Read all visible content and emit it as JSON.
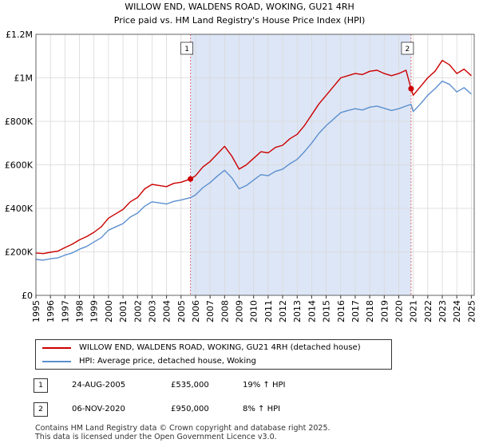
{
  "chart_data": {
    "type": "line",
    "title": "WILLOW END, WALDENS ROAD, WOKING, GU21 4RH",
    "subtitle": "Price paid vs. HM Land Registry's House Price Index (HPI)",
    "xlim": [
      1995.0,
      2025.2
    ],
    "ylim": [
      0,
      1200000
    ],
    "y_ticks": [
      0,
      200000,
      400000,
      600000,
      800000,
      1000000,
      1200000
    ],
    "y_tick_labels": [
      "£0",
      "£200K",
      "£400K",
      "£600K",
      "£800K",
      "£1M",
      "£1.2M"
    ],
    "x_ticks": [
      "1995",
      "1996",
      "1997",
      "1998",
      "1999",
      "2000",
      "2001",
      "2002",
      "2003",
      "2004",
      "2005",
      "2006",
      "2007",
      "2008",
      "2009",
      "2010",
      "2011",
      "2012",
      "2013",
      "2014",
      "2015",
      "2016",
      "2017",
      "2018",
      "2019",
      "2020",
      "2021",
      "2022",
      "2023",
      "2024",
      "2025"
    ],
    "grid": true,
    "shaded_period": [
      2005.65,
      2020.85
    ],
    "colors": {
      "property": "#cc0000",
      "hpi": "#5b8fcf",
      "shade": "#dde6f6",
      "vline": "#e07070"
    },
    "series": [
      {
        "name": "WILLOW END, WALDENS ROAD, WOKING, GU21 4RH (detached house)",
        "x": [
          1995.0,
          1995.5,
          1996.0,
          1996.5,
          1997.0,
          1997.5,
          1998.0,
          1998.5,
          1999.0,
          1999.5,
          2000.0,
          2000.5,
          2001.0,
          2001.5,
          2002.0,
          2002.5,
          2003.0,
          2003.5,
          2004.0,
          2004.5,
          2005.0,
          2005.65,
          2006.0,
          2006.5,
          2007.0,
          2007.5,
          2008.0,
          2008.5,
          2009.0,
          2009.5,
          2010.0,
          2010.5,
          2011.0,
          2011.5,
          2012.0,
          2012.5,
          2013.0,
          2013.5,
          2014.0,
          2014.5,
          2015.0,
          2015.5,
          2016.0,
          2016.5,
          2017.0,
          2017.5,
          2018.0,
          2018.5,
          2019.0,
          2019.5,
          2020.0,
          2020.5,
          2020.85,
          2021.0,
          2021.5,
          2022.0,
          2022.5,
          2023.0,
          2023.5,
          2024.0,
          2024.5,
          2025.0
        ],
        "values": [
          195000,
          192000,
          198000,
          203000,
          220000,
          235000,
          255000,
          270000,
          290000,
          315000,
          355000,
          375000,
          395000,
          430000,
          450000,
          490000,
          510000,
          505000,
          500000,
          515000,
          520000,
          535000,
          550000,
          590000,
          615000,
          650000,
          685000,
          640000,
          580000,
          600000,
          630000,
          660000,
          655000,
          680000,
          690000,
          720000,
          740000,
          780000,
          830000,
          880000,
          920000,
          960000,
          1000000,
          1010000,
          1020000,
          1015000,
          1030000,
          1035000,
          1020000,
          1010000,
          1020000,
          1035000,
          950000,
          920000,
          960000,
          1000000,
          1030000,
          1080000,
          1060000,
          1020000,
          1040000,
          1010000
        ]
      },
      {
        "name": "HPI: Average price, detached house, Woking",
        "x": [
          1995.0,
          1995.5,
          1996.0,
          1996.5,
          1997.0,
          1997.5,
          1998.0,
          1998.5,
          1999.0,
          1999.5,
          2000.0,
          2000.5,
          2001.0,
          2001.5,
          2002.0,
          2002.5,
          2003.0,
          2003.5,
          2004.0,
          2004.5,
          2005.0,
          2005.65,
          2006.0,
          2006.5,
          2007.0,
          2007.5,
          2008.0,
          2008.5,
          2009.0,
          2009.5,
          2010.0,
          2010.5,
          2011.0,
          2011.5,
          2012.0,
          2012.5,
          2013.0,
          2013.5,
          2014.0,
          2014.5,
          2015.0,
          2015.5,
          2016.0,
          2016.5,
          2017.0,
          2017.5,
          2018.0,
          2018.5,
          2019.0,
          2019.5,
          2020.0,
          2020.5,
          2020.85,
          2021.0,
          2021.5,
          2022.0,
          2022.5,
          2023.0,
          2023.5,
          2024.0,
          2024.5,
          2025.0
        ],
        "values": [
          165000,
          162000,
          168000,
          172000,
          185000,
          195000,
          212000,
          225000,
          245000,
          265000,
          300000,
          315000,
          330000,
          360000,
          378000,
          410000,
          430000,
          425000,
          420000,
          432000,
          438000,
          449000,
          462000,
          495000,
          518000,
          548000,
          575000,
          540000,
          490000,
          505000,
          530000,
          555000,
          550000,
          570000,
          580000,
          605000,
          625000,
          660000,
          700000,
          745000,
          780000,
          810000,
          840000,
          850000,
          858000,
          852000,
          865000,
          870000,
          860000,
          850000,
          858000,
          870000,
          878000,
          845000,
          880000,
          920000,
          950000,
          985000,
          970000,
          935000,
          955000,
          925000
        ]
      }
    ],
    "sales": [
      {
        "n": "1",
        "x": 2005.65,
        "price": 535000,
        "date": "24-AUG-2005",
        "price_label": "£535,000",
        "hpi": "19% ↑ HPI"
      },
      {
        "n": "2",
        "x": 2020.85,
        "price": 950000,
        "date": "06-NOV-2020",
        "price_label": "£950,000",
        "hpi": "8% ↑ HPI"
      }
    ]
  },
  "legend": {
    "property_label": "WILLOW END, WALDENS ROAD, WOKING, GU21 4RH (detached house)",
    "hpi_label": "HPI: Average price, detached house, Woking"
  },
  "footer": {
    "line1": "Contains HM Land Registry data © Crown copyright and database right 2025.",
    "line2": "This data is licensed under the Open Government Licence v3.0."
  }
}
